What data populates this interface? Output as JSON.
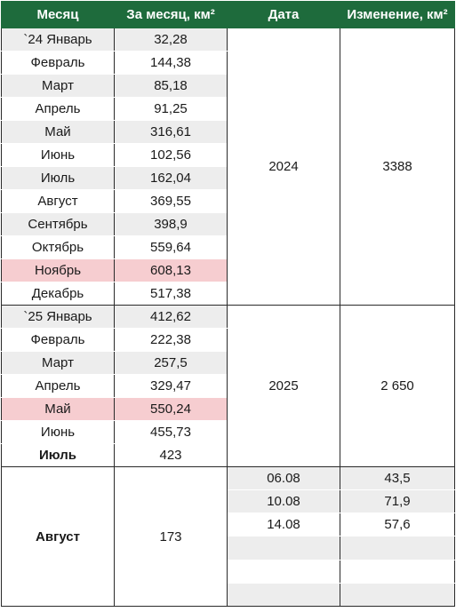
{
  "headers": [
    "Месяц",
    "За месяц, км²",
    "Дата",
    "Изменение, км²"
  ],
  "year2024": {
    "year": "2024",
    "change": "3388",
    "months": [
      {
        "month": "`24 Январь",
        "value": "32,28"
      },
      {
        "month": "Февраль",
        "value": "144,38"
      },
      {
        "month": "Март",
        "value": "85,18"
      },
      {
        "month": "Апрель",
        "value": "91,25"
      },
      {
        "month": "Май",
        "value": "316,61"
      },
      {
        "month": "Июнь",
        "value": "102,56"
      },
      {
        "month": "Июль",
        "value": "162,04"
      },
      {
        "month": "Август",
        "value": "369,55"
      },
      {
        "month": "Сентябрь",
        "value": "398,9"
      },
      {
        "month": "Октябрь",
        "value": "559,64"
      },
      {
        "month": "Ноябрь",
        "value": "608,13"
      },
      {
        "month": "Декабрь",
        "value": "517,38"
      }
    ]
  },
  "year2025": {
    "year": "2025",
    "change": "2 650",
    "months": [
      {
        "month": "`25 Январь",
        "value": "412,62"
      },
      {
        "month": "Февраль",
        "value": "222,38"
      },
      {
        "month": "Март",
        "value": "257,5"
      },
      {
        "month": "Апрель",
        "value": "329,47"
      },
      {
        "month": "Май",
        "value": "550,24"
      },
      {
        "month": "Июнь",
        "value": "455,73"
      },
      {
        "month": "Июль",
        "value": "423"
      }
    ]
  },
  "august": {
    "month": "Август",
    "value": "173",
    "entries": [
      {
        "date": "06.08",
        "change": "43,5"
      },
      {
        "date": "10.08",
        "change": "71,9"
      },
      {
        "date": "14.08",
        "change": "57,6"
      },
      {
        "date": "",
        "change": ""
      },
      {
        "date": "",
        "change": ""
      },
      {
        "date": "",
        "change": ""
      }
    ]
  },
  "colors": {
    "header_bg": "#1e6b3c",
    "row_shade": "#ededed",
    "row_highlight": "#f6cdd0"
  }
}
